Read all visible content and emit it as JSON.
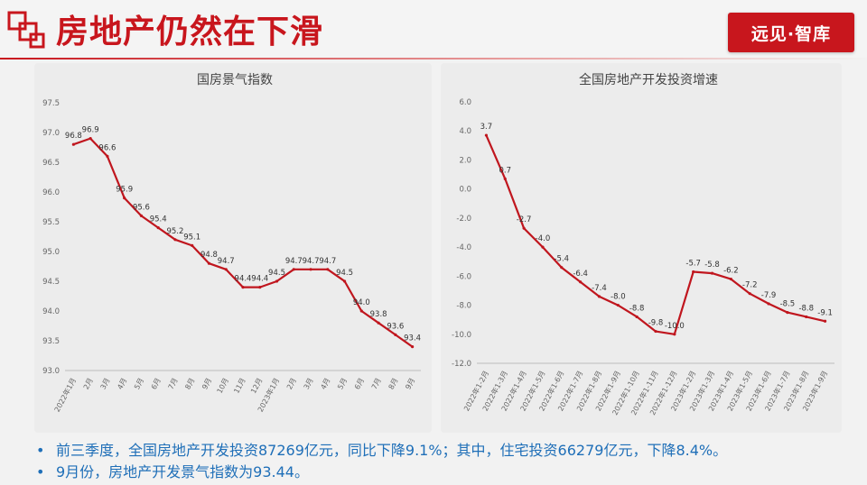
{
  "header": {
    "title": "房地产仍然在下滑",
    "brand": "远见·智库",
    "accent_color": "#c8161d"
  },
  "bullets": [
    "前三季度，全国房地产开发投资87269亿元，同比下降9.1%；其中，住宅投资66279亿元，下降8.4%。",
    "9月份，房地产开发景气指数为93.44。"
  ],
  "chart_data": [
    {
      "type": "line",
      "title": "国房景气指数",
      "color": "#c0161e",
      "ylim": [
        93.0,
        97.5
      ],
      "yticks": [
        "93.0",
        "93.5",
        "94.0",
        "94.5",
        "95.0",
        "95.5",
        "96.0",
        "96.5",
        "97.0",
        "97.5"
      ],
      "categories": [
        "2022年1月",
        "2月",
        "3月",
        "4月",
        "5月",
        "6月",
        "7月",
        "8月",
        "9月",
        "10月",
        "11月",
        "12月",
        "2023年1月",
        "2月",
        "3月",
        "4月",
        "5月",
        "6月",
        "7月",
        "8月",
        "9月"
      ],
      "values": [
        96.8,
        96.9,
        96.6,
        95.9,
        95.6,
        95.4,
        95.2,
        95.1,
        94.8,
        94.7,
        94.4,
        94.4,
        94.5,
        94.7,
        94.7,
        94.7,
        94.5,
        94.0,
        93.8,
        93.6,
        93.4
      ],
      "label_values": [
        96.8,
        96.9,
        96.6,
        95.9,
        95.6,
        95.4,
        95.2,
        95.1,
        94.8,
        94.7,
        94.4,
        94.4,
        94.5,
        94.7,
        94.7,
        94.7,
        94.5,
        94.0,
        93.8,
        93.6,
        93.4
      ],
      "grid": false
    },
    {
      "type": "line",
      "title": "全国房地产开发投资增速",
      "color": "#c0161e",
      "ylim": [
        -12.0,
        6.0
      ],
      "yticks": [
        "-12.0",
        "-10.0",
        "-8.0",
        "-6.0",
        "-4.0",
        "-2.0",
        "0.0",
        "2.0",
        "4.0",
        "6.0"
      ],
      "categories": [
        "2022年1-2月",
        "2022年1-3月",
        "2022年1-4月",
        "2022年1-5月",
        "2022年1-6月",
        "2022年1-7月",
        "2022年1-8月",
        "2022年1-9月",
        "2022年1-10月",
        "2022年1-11月",
        "2022年1-12月",
        "2023年1-2月",
        "2023年1-3月",
        "2023年1-4月",
        "2023年1-5月",
        "2023年1-6月",
        "2023年1-7月",
        "2023年1-8月",
        "2023年1-9月"
      ],
      "values": [
        3.7,
        0.7,
        -2.7,
        -4.0,
        -5.4,
        -6.4,
        -7.4,
        -8.0,
        -8.8,
        -9.8,
        -10.0,
        -5.7,
        -5.8,
        -6.2,
        -7.2,
        -7.9,
        -8.5,
        -8.8,
        -9.1
      ],
      "label_values": [
        3.7,
        0.7,
        -2.7,
        -4.0,
        -5.4,
        -6.4,
        -7.4,
        -8.0,
        -8.8,
        -9.8,
        -10.0,
        -5.7,
        -5.8,
        -6.2,
        -7.2,
        -7.9,
        -8.5,
        -8.8,
        -9.1
      ],
      "grid": false
    }
  ]
}
